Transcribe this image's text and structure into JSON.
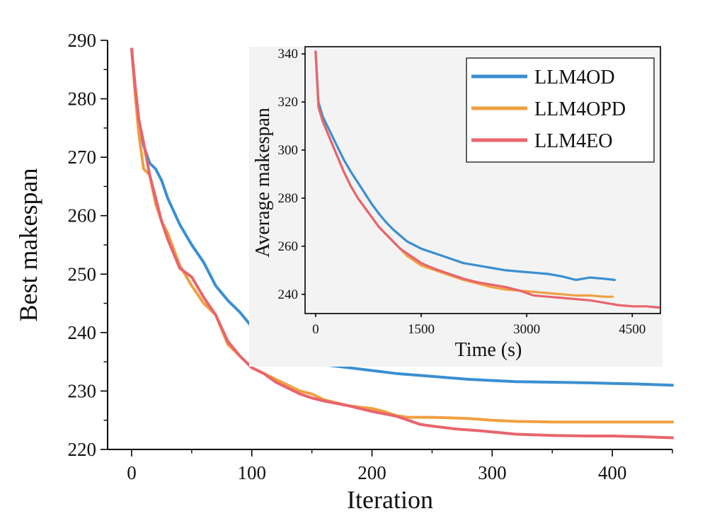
{
  "chart_data": [
    {
      "type": "line",
      "title": "",
      "xlabel": "Iteration",
      "ylabel": "Best makespan",
      "xlim": [
        -20,
        450
      ],
      "ylim": [
        220,
        290
      ],
      "xticks": [
        0,
        100,
        200,
        300,
        400
      ],
      "yticks": [
        220,
        230,
        240,
        250,
        260,
        270,
        280,
        290
      ],
      "grid": false,
      "series": [
        {
          "name": "LLM4OD",
          "color": "#3a8fd1",
          "x": [
            0,
            3,
            6,
            10,
            15,
            20,
            25,
            30,
            40,
            50,
            60,
            70,
            80,
            90,
            100,
            110,
            120,
            130,
            140,
            150,
            160,
            180,
            200,
            220,
            250,
            280,
            300,
            320,
            350,
            380,
            400,
            420,
            450
          ],
          "y": [
            288.5,
            281,
            276,
            272,
            269,
            268,
            266,
            263,
            258.5,
            255,
            252,
            248,
            245.5,
            243.5,
            241,
            240,
            238.5,
            237.5,
            236.5,
            235.5,
            234.5,
            234,
            233.5,
            233,
            232.5,
            232,
            231.8,
            231.6,
            231.5,
            231.4,
            231.3,
            231.2,
            231
          ]
        },
        {
          "name": "LLM4OPD",
          "color": "#f0a040",
          "x": [
            0,
            3,
            6,
            10,
            15,
            20,
            25,
            30,
            40,
            50,
            60,
            70,
            80,
            90,
            100,
            110,
            120,
            130,
            140,
            150,
            160,
            180,
            200,
            210,
            220,
            230,
            250,
            280,
            300,
            320,
            350,
            380,
            400,
            420,
            450
          ],
          "y": [
            288.5,
            280.5,
            274,
            268,
            267,
            262,
            259,
            257,
            251.5,
            248,
            245,
            243,
            238,
            236,
            234,
            233,
            232,
            231,
            230,
            229.5,
            228.5,
            227.5,
            227,
            226.5,
            225.8,
            225.5,
            225.5,
            225.3,
            225,
            224.8,
            224.7,
            224.7,
            224.7,
            224.7,
            224.7
          ]
        },
        {
          "name": "LLM4EO",
          "color": "#e8646e",
          "x": [
            0,
            3,
            6,
            10,
            15,
            20,
            25,
            30,
            40,
            50,
            60,
            70,
            80,
            90,
            100,
            110,
            120,
            130,
            140,
            150,
            160,
            180,
            200,
            220,
            230,
            240,
            250,
            270,
            290,
            300,
            320,
            350,
            380,
            400,
            420,
            450
          ],
          "y": [
            288.5,
            282,
            276.5,
            272.5,
            267,
            263,
            259,
            256,
            251,
            249.5,
            246,
            243,
            238.5,
            236,
            234,
            233,
            231.5,
            230.5,
            229.5,
            228.8,
            228.3,
            227.5,
            226.5,
            225.7,
            225,
            224.3,
            224,
            223.5,
            223.2,
            223,
            222.6,
            222.4,
            222.3,
            222.3,
            222.2,
            222
          ]
        }
      ]
    },
    {
      "type": "line",
      "title": "",
      "xlabel": "Time (s)",
      "ylabel": "Average makespan",
      "xlim": [
        -150,
        4900
      ],
      "ylim": [
        232,
        343
      ],
      "xticks": [
        0,
        1500,
        3000,
        4500
      ],
      "yticks": [
        240,
        260,
        280,
        300,
        320,
        340
      ],
      "grid": false,
      "legend": "top-right",
      "series": [
        {
          "name": "LLM4OD",
          "color": "#3a8fd1",
          "x": [
            0,
            40,
            100,
            200,
            300,
            400,
            500,
            600,
            700,
            800,
            900,
            1000,
            1100,
            1200,
            1300,
            1500,
            1700,
            1900,
            2100,
            2300,
            2500,
            2700,
            2900,
            3100,
            3300,
            3500,
            3700,
            3900,
            4100,
            4250
          ],
          "y": [
            341,
            320,
            314,
            308,
            302,
            296,
            291,
            286.5,
            282,
            277.5,
            273.5,
            270,
            267,
            264.5,
            262,
            259,
            257,
            255,
            253,
            252,
            251,
            250,
            249.5,
            249,
            248.5,
            247.5,
            246,
            247,
            246.5,
            246
          ]
        },
        {
          "name": "LLM4OPD",
          "color": "#f0a040",
          "x": [
            0,
            40,
            100,
            200,
            300,
            400,
            500,
            600,
            700,
            800,
            900,
            1000,
            1100,
            1200,
            1300,
            1500,
            1700,
            1900,
            2100,
            2300,
            2500,
            2700,
            2900,
            3100,
            3300,
            3500,
            3700,
            3900,
            4100,
            4220
          ],
          "y": [
            341,
            318,
            312,
            305,
            298,
            291,
            285,
            280,
            276,
            272,
            268,
            265,
            262,
            259,
            256,
            252,
            250,
            248,
            246,
            244.5,
            243,
            242,
            241.5,
            241,
            240.5,
            240,
            239.5,
            239.5,
            239,
            239
          ]
        },
        {
          "name": "LLM4EO",
          "color": "#e8646e",
          "x": [
            0,
            40,
            100,
            200,
            300,
            400,
            500,
            600,
            700,
            800,
            900,
            1000,
            1100,
            1200,
            1300,
            1500,
            1700,
            1900,
            2100,
            2300,
            2500,
            2700,
            2900,
            3100,
            3300,
            3500,
            3700,
            3900,
            4100,
            4300,
            4500,
            4700,
            4880
          ],
          "y": [
            341,
            318,
            312,
            305,
            298,
            291,
            285,
            280,
            276,
            272,
            268,
            265,
            262,
            259,
            257,
            253,
            250.5,
            248.5,
            246.5,
            245,
            244,
            243,
            241.5,
            239.5,
            239,
            238.5,
            238,
            237.5,
            236.5,
            235.5,
            235,
            235,
            234.5
          ]
        }
      ]
    }
  ]
}
